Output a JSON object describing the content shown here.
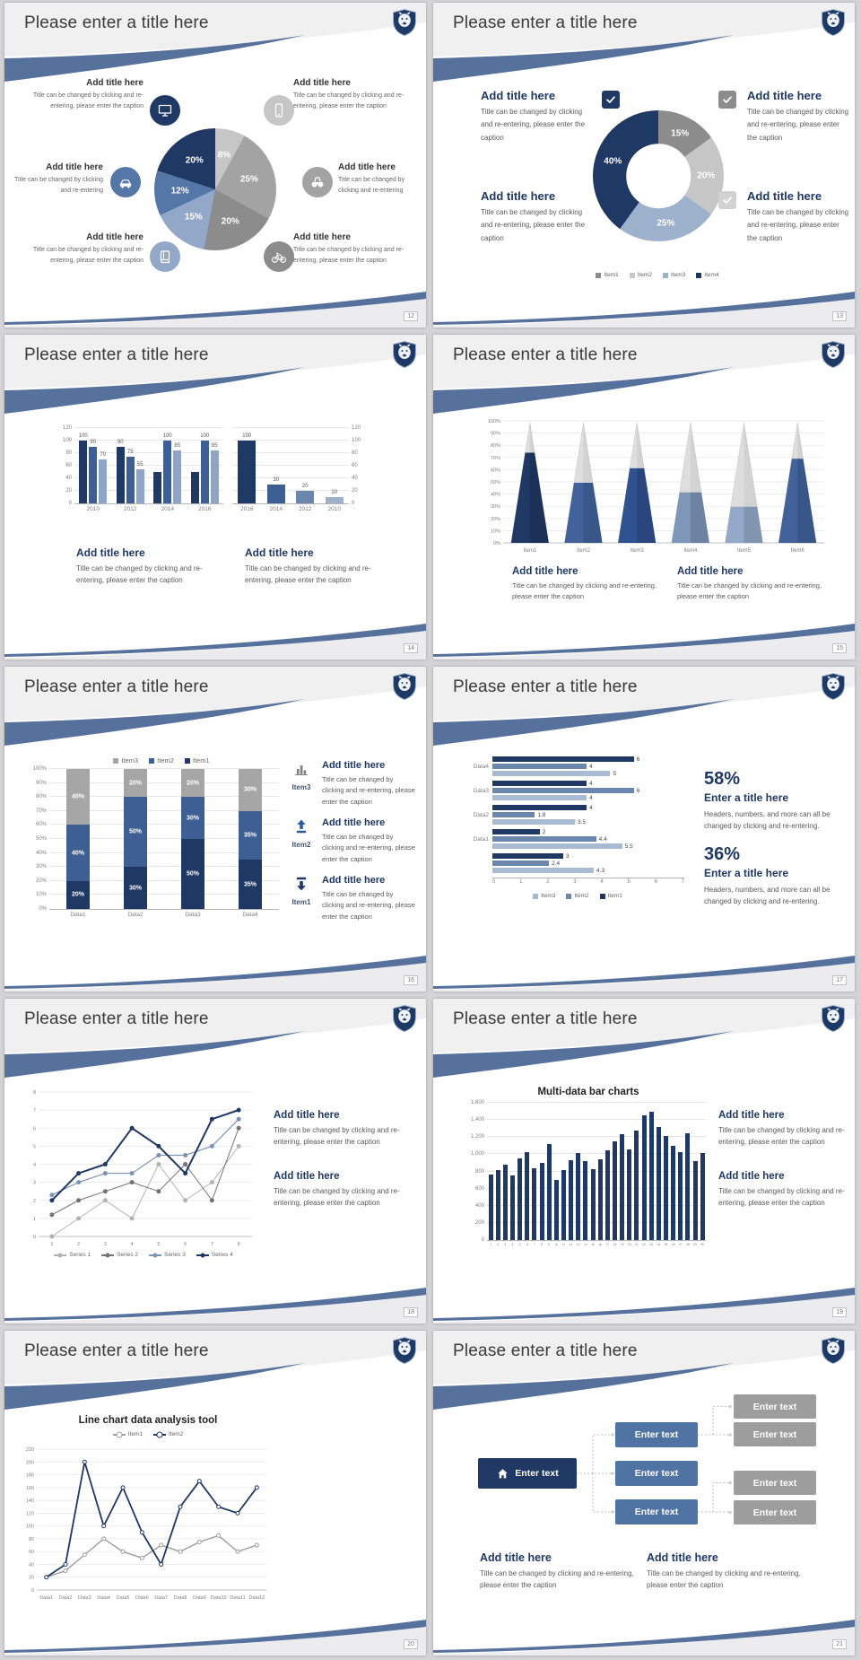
{
  "common": {
    "slide_title": "Please enter a title here",
    "add_title": "Add title here",
    "caption": "Title can be changed by clicking and re-entering, please enter the caption",
    "caption_short": "Title can be changed by clicking and re-entering"
  },
  "colors": {
    "navy": "#1f3864",
    "blue": "#3e5f94",
    "steel": "#6b87ad",
    "light_blue": "#9db0cc",
    "ribbon": "#56719c",
    "gray": "#a3a3a3"
  },
  "slides": {
    "s12": {
      "page": "12",
      "callouts_left": [
        {
          "heading": "Add title here",
          "caption": "Title can be changed by clicking and re-entering, please enter the caption",
          "icon": "monitor-icon",
          "color": "#1f3864"
        },
        {
          "heading": "Add title here",
          "caption": "Title can be changed by clicking and re-entering",
          "icon": "car-icon",
          "color": "#5577a8"
        },
        {
          "heading": "Add title here",
          "caption": "Title can be changed by clicking and re-entering, please enter the caption",
          "icon": "book-icon",
          "color": "#93a7c9"
        }
      ],
      "callouts_right": [
        {
          "heading": "Add title here",
          "caption": "Title can be changed by clicking and re-entering, please enter the caption",
          "icon": "smartphone-icon",
          "color": "#c6c6c6"
        },
        {
          "heading": "Add title here",
          "caption": "Title can be changed by clicking and re-entering",
          "icon": "binoculars-icon",
          "color": "#a3a3a3"
        },
        {
          "heading": "Add title here",
          "caption": "Title can be changed by clicking and re-entering, please enter the caption",
          "icon": "bicycle-icon",
          "color": "#8c8c8c"
        }
      ]
    },
    "s13": {
      "page": "13",
      "checkbox_colors": [
        "#1f3864",
        "#9db0cc",
        "#8c8c8c",
        "#d2d2d2"
      ],
      "blocks_left": [
        {
          "heading": "Add title here",
          "caption": "Title can be changed by clicking and re-entering, please enter the caption"
        },
        {
          "heading": "Add title here",
          "caption": "Title can be changed by clicking and re-entering, please enter the caption"
        }
      ],
      "blocks_right": [
        {
          "heading": "Add title here",
          "caption": "Title can be changed by clicking and re-entering, please enter the caption"
        },
        {
          "heading": "Add title here",
          "caption": "Title can be changed by clicking and re-entering, please enter the caption"
        }
      ]
    },
    "s14": {
      "page": "14",
      "blocks": [
        {
          "heading": "Add title here",
          "caption": "Title can be changed by clicking and re-entering, please enter the caption"
        },
        {
          "heading": "Add title here",
          "caption": "Title can be changed by clicking and re-entering, please enter the caption"
        }
      ]
    },
    "s15": {
      "page": "15",
      "blocks": [
        {
          "heading": "Add title here",
          "caption": "Title can be changed by clicking and re-entering, please enter the caption"
        },
        {
          "heading": "Add title here",
          "caption": "Title can be changed by clicking and re-entering, please enter the caption"
        }
      ]
    },
    "s16": {
      "page": "16",
      "items": [
        {
          "tag": "Item3",
          "heading": "Add title here",
          "caption": "Title can be changed by clicking and re-entering, please enter the caption",
          "icon": "bar-chart-icon"
        },
        {
          "tag": "Item2",
          "heading": "Add title here",
          "caption": "Title can be changed by clicking and re-entering, please enter the caption",
          "icon": "arrow-up-icon"
        },
        {
          "tag": "Item1",
          "heading": "Add title here",
          "caption": "Title can be changed by clicking and re-entering, please enter the caption",
          "icon": "arrow-down-icon"
        }
      ]
    },
    "s17": {
      "page": "17",
      "stats": [
        {
          "value": "58%",
          "heading": "Enter a title here",
          "caption": "Headers, numbers, and more can all be changed by clicking and re-entering."
        },
        {
          "value": "36%",
          "heading": "Enter a title here",
          "caption": "Headers, numbers, and more can all be changed by clicking and re-entering."
        }
      ]
    },
    "s18": {
      "page": "18",
      "blocks": [
        {
          "heading": "Add title here",
          "caption": "Title can be changed by clicking and re-entering, please enter the caption"
        },
        {
          "heading": "Add title here",
          "caption": "Title can be changed by clicking and re-entering, please enter the caption"
        }
      ]
    },
    "s19": {
      "page": "19",
      "blocks": [
        {
          "heading": "Add title here",
          "caption": "Title can be changed by clicking and re-entering, please enter the caption"
        },
        {
          "heading": "Add title here",
          "caption": "Title can be changed by clicking and re-entering, please enter the caption"
        }
      ]
    },
    "s20": {
      "page": "20"
    },
    "s21": {
      "page": "21",
      "root": "Enter text",
      "mid": [
        "Enter text",
        "Enter text",
        "Enter text"
      ],
      "leaf": [
        "Enter text",
        "Enter text",
        "Enter text",
        "Enter text"
      ],
      "blocks": [
        {
          "heading": "Add title here",
          "caption": "Title can be changed by clicking and re-entering, please enter the caption"
        },
        {
          "heading": "Add title here",
          "caption": "Title can be changed by clicking and re-entering, please enter the caption"
        }
      ]
    }
  },
  "chart_data": [
    {
      "id": "pie12",
      "type": "pie",
      "slices": [
        {
          "label": "8%",
          "value": 8,
          "color": "#c6c6c6"
        },
        {
          "label": "25%",
          "value": 25,
          "color": "#a3a3a3"
        },
        {
          "label": "20%",
          "value": 20,
          "color": "#8c8c8c"
        },
        {
          "label": "15%",
          "value": 15,
          "color": "#93a7c9"
        },
        {
          "label": "12%",
          "value": 12,
          "color": "#5577a8"
        },
        {
          "label": "20%",
          "value": 20,
          "color": "#1f3864"
        }
      ]
    },
    {
      "id": "donut13",
      "type": "donut",
      "slices": [
        {
          "label": "15%",
          "value": 15,
          "color": "#8c8c8c"
        },
        {
          "label": "20%",
          "value": 20,
          "color": "#c6c6c6"
        },
        {
          "label": "25%",
          "value": 25,
          "color": "#9db0cc"
        },
        {
          "label": "40%",
          "value": 40,
          "color": "#1f3864"
        }
      ],
      "legend": [
        {
          "label": "Item1",
          "color": "#8c8c8c"
        },
        {
          "label": "Item2",
          "color": "#c6c6c6"
        },
        {
          "label": "Item3",
          "color": "#9db0cc"
        },
        {
          "label": "Item4",
          "color": "#1f3864"
        }
      ]
    },
    {
      "id": "bars14a",
      "type": "bar",
      "categories": [
        "2010",
        "2012",
        "2014",
        "2016"
      ],
      "series": [
        {
          "name": "",
          "color": "#1f3864",
          "values": [
            100,
            90,
            50,
            50
          ],
          "labels": [
            "100",
            "90",
            "",
            ""
          ]
        },
        {
          "name": "",
          "color": "#3e5f94",
          "values": [
            90,
            75,
            100,
            100
          ],
          "labels": [
            "90",
            "75",
            "100",
            "100"
          ]
        },
        {
          "name": "",
          "color": "#8fa5c6",
          "values": [
            70,
            55,
            85,
            85
          ],
          "labels": [
            "70",
            "55",
            "85",
            "85"
          ]
        }
      ],
      "ylim": [
        0,
        120
      ],
      "yticks": [
        0,
        20,
        40,
        60,
        80,
        100,
        120
      ],
      "axis": "left"
    },
    {
      "id": "bars14b",
      "type": "bar",
      "categories": [
        "2016",
        "2014",
        "2012",
        "2010"
      ],
      "series": [
        {
          "name": "",
          "colors": [
            "#1f3864",
            "#3e5f94",
            "#6b87ad",
            "#9db0cc"
          ],
          "values": [
            100,
            30,
            20,
            10
          ],
          "labels": [
            "100",
            "30",
            "20",
            "10"
          ]
        }
      ],
      "ylim": [
        0,
        120
      ],
      "yticks": [
        0,
        20,
        40,
        60,
        80,
        100,
        120
      ],
      "axis": "right"
    },
    {
      "id": "cones15",
      "type": "cone",
      "categories": [
        "Item1",
        "Item2",
        "Item3",
        "Item4",
        "Item5",
        "Item6"
      ],
      "values": [
        75,
        50,
        62,
        42,
        30,
        70
      ],
      "colors": [
        "#1f3864",
        "#41629b",
        "#2f5190",
        "#7e96b8",
        "#93a9c9",
        "#41629b"
      ],
      "yticks": [
        "100%",
        "90%",
        "80%",
        "70%",
        "60%",
        "50%",
        "40%",
        "30%",
        "20%",
        "10%",
        "0%"
      ]
    },
    {
      "id": "stack16",
      "type": "stack",
      "categories": [
        "Data1",
        "Data2",
        "Data3",
        "Data4"
      ],
      "series": [
        {
          "name": "Item1",
          "color": "#1f3864",
          "values": [
            20,
            30,
            50,
            35
          ]
        },
        {
          "name": "Item2",
          "color": "#3e5f94",
          "values": [
            40,
            50,
            30,
            35
          ]
        },
        {
          "name": "Item3",
          "color": "#a6a6a6",
          "values": [
            40,
            20,
            20,
            30
          ]
        }
      ],
      "ylim": [
        0,
        100
      ],
      "yticks": [
        "0%",
        "10%",
        "20%",
        "30%",
        "40%",
        "50%",
        "60%",
        "70%",
        "80%",
        "90%",
        "100%"
      ],
      "legend": [
        {
          "label": "Item3",
          "color": "#a6a6a6"
        },
        {
          "label": "Item2",
          "color": "#3e5f94"
        },
        {
          "label": "Item1",
          "color": "#1f3864"
        }
      ]
    },
    {
      "id": "hbars17",
      "type": "hbar",
      "categories": [
        "Data4",
        "Data3",
        "Data2",
        "Data1",
        ""
      ],
      "series": [
        {
          "name": "Item1",
          "color": "#1f3864",
          "values": [
            6,
            4,
            4,
            2,
            3
          ]
        },
        {
          "name": "Item2",
          "color": "#6b87ad",
          "values": [
            4,
            6,
            1.8,
            4.4,
            2.4
          ]
        },
        {
          "name": "Item3",
          "color": "#a9bad3",
          "values": [
            5,
            4,
            3.5,
            5.5,
            4.3
          ]
        }
      ],
      "xlim": [
        0,
        7
      ],
      "xticks": [
        0,
        1,
        2,
        3,
        4,
        5,
        6,
        7
      ],
      "legend": [
        {
          "label": "Item3",
          "color": "#a9bad3"
        },
        {
          "label": "Item2",
          "color": "#6b87ad"
        },
        {
          "label": "Item1",
          "color": "#1f3864"
        }
      ]
    },
    {
      "id": "line18",
      "type": "line",
      "marker": "filled",
      "ml": 14,
      "x_labels": [
        "1",
        "2",
        "3",
        "4",
        "5",
        "6",
        "7",
        "8"
      ],
      "ylim": [
        0,
        8
      ],
      "yticks": [
        0,
        1,
        2,
        3,
        4,
        5,
        6,
        7,
        8
      ],
      "series": [
        {
          "name": "Series 1",
          "color": "#b3b3b3",
          "w": 1,
          "values": [
            0,
            1,
            2,
            1,
            4,
            2,
            3,
            5
          ]
        },
        {
          "name": "Series 2",
          "color": "#737373",
          "w": 1,
          "values": [
            1.2,
            2,
            2.5,
            3,
            2.5,
            4,
            2,
            6
          ]
        },
        {
          "name": "Series 3",
          "color": "#7b93b5",
          "w": 1.2,
          "values": [
            2.3,
            3,
            3.5,
            3.5,
            4.5,
            4.5,
            5,
            6.5
          ]
        },
        {
          "name": "Series 4",
          "color": "#1f3864",
          "w": 2,
          "values": [
            2,
            3.5,
            4,
            6,
            5,
            3.5,
            6.5,
            7
          ]
        }
      ]
    },
    {
      "id": "bars19",
      "type": "multibar",
      "title": "Multi-data bar charts",
      "color": "#1f3864",
      "x_labels": [
        "1",
        "2",
        "3",
        "4",
        "5",
        "6",
        "7",
        "8",
        "9",
        "10",
        "11",
        "12",
        "13",
        "14",
        "15",
        "16",
        "17",
        "18",
        "19",
        "20",
        "21",
        "22",
        "23",
        "24",
        "25",
        "26",
        "27",
        "28",
        "29",
        "30"
      ],
      "values": [
        760,
        820,
        880,
        750,
        950,
        1020,
        840,
        900,
        1120,
        700,
        820,
        930,
        1010,
        920,
        830,
        940,
        1050,
        1150,
        1230,
        1060,
        1280,
        1450,
        1500,
        1320,
        1210,
        1100,
        1020,
        1240,
        920,
        1010
      ],
      "ylim": [
        0,
        1600
      ],
      "yticks": [
        "0",
        "200",
        "400",
        "600",
        "800",
        "1,000",
        "1,200",
        "1,400",
        "1,600"
      ]
    },
    {
      "id": "line20",
      "type": "line",
      "title": "Line chart data analysis tool",
      "marker": "open",
      "ml": 20,
      "x_labels": [
        "Data1",
        "Data2",
        "Data3",
        "Data4",
        "Data5",
        "Data6",
        "Data7",
        "Data8",
        "Data9",
        "Data10",
        "Data11",
        "Data12"
      ],
      "ylim": [
        0,
        220
      ],
      "yticks": [
        0,
        20,
        40,
        60,
        80,
        100,
        120,
        140,
        160,
        180,
        200,
        220
      ],
      "series": [
        {
          "name": "Item1",
          "color": "#9e9e9e",
          "w": 1.4,
          "values": [
            20,
            30,
            55,
            80,
            60,
            50,
            70,
            60,
            75,
            85,
            60,
            70
          ]
        },
        {
          "name": "Item2",
          "color": "#1f3864",
          "w": 1.8,
          "values": [
            20,
            40,
            200,
            100,
            160,
            90,
            40,
            130,
            170,
            130,
            120,
            160
          ]
        }
      ]
    }
  ]
}
